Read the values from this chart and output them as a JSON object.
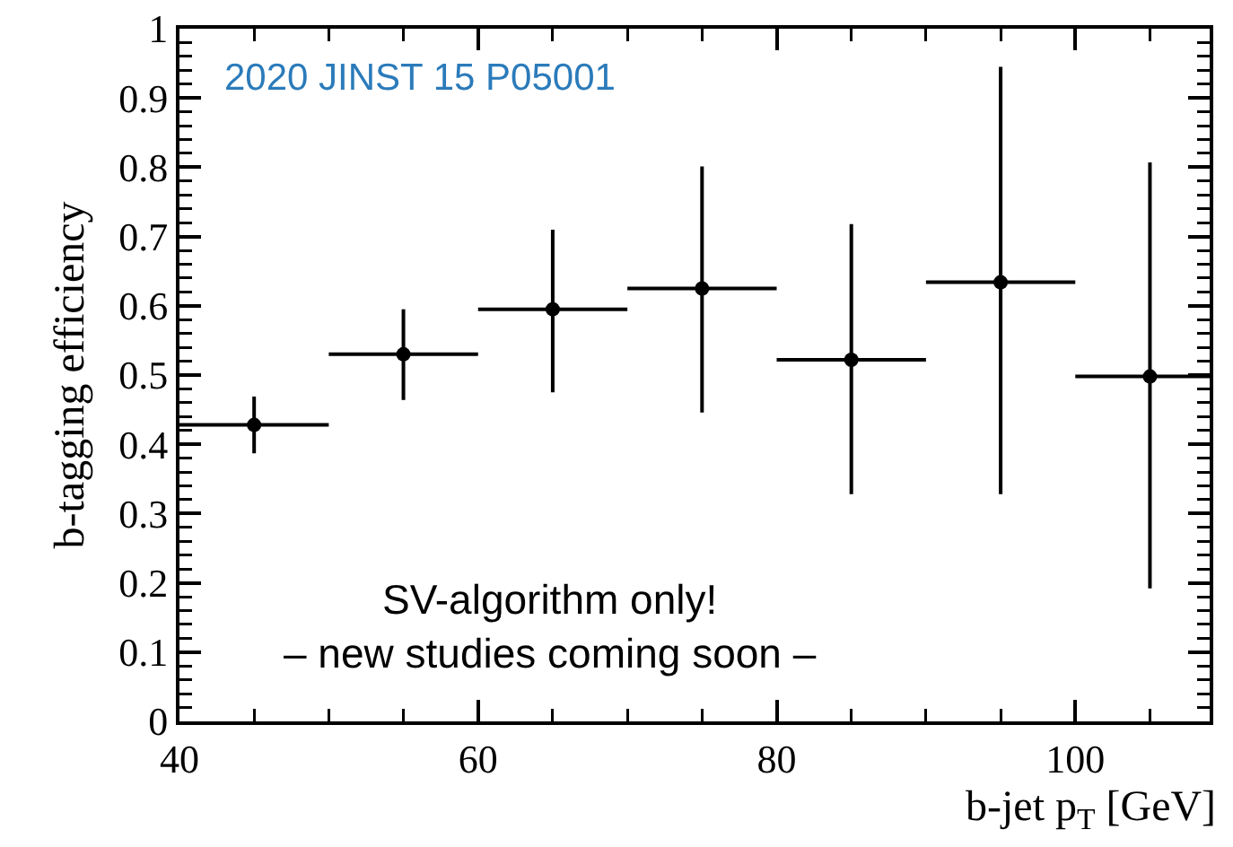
{
  "chart_data": {
    "type": "scatter",
    "xlabel": "b-jet p$_{T}$ [GeV]",
    "ylabel": "b-tagging efficiency",
    "annotations": [
      "2020 JINST 15 P05001",
      "SV-algorithm only!\n– new studies coming soon –"
    ],
    "x": [
      45,
      55,
      65,
      75,
      85,
      95,
      105
    ],
    "series": [
      {
        "color": "#000000",
        "values": [
          0.428,
          0.53,
          0.595,
          0.625,
          0.522,
          0.634,
          0.498
        ],
        "errors": [
          [
            0.387,
            0.469
          ],
          [
            0.464,
            0.595
          ],
          [
            0.475,
            0.71
          ],
          [
            0.446,
            0.801
          ],
          [
            0.328,
            0.718
          ],
          [
            0.328,
            0.945
          ],
          [
            0.192,
            0.807
          ]
        ],
        "xerrors": [
          5,
          5,
          5,
          5,
          5,
          5,
          5
        ]
      }
    ],
    "xlim": [
      40,
      109
    ],
    "xticks": [
      40,
      60,
      80,
      100
    ],
    "ylim": [
      0,
      1
    ],
    "yticks": [
      0,
      0.1,
      0.2,
      0.3,
      0.4,
      0.5,
      0.6,
      0.7,
      0.8,
      0.9,
      1
    ],
    "grid": false,
    "marker": "circle"
  }
}
